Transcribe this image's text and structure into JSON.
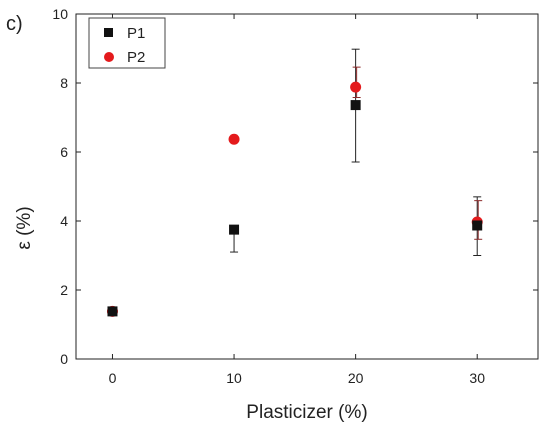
{
  "chart_data": {
    "type": "scatter",
    "panel_label": "c)",
    "xlabel": "Plasticizer (%)",
    "ylabel": "ε (%)",
    "xlim": [
      -3,
      35
    ],
    "ylim": [
      0,
      10
    ],
    "xticks": [
      0,
      10,
      20,
      30
    ],
    "yticks": [
      0,
      2,
      4,
      6,
      8,
      10
    ],
    "grid": false,
    "legend_position": "top-left",
    "series": [
      {
        "name": "P1",
        "marker": "square",
        "color": "#111111",
        "x": [
          0,
          10,
          20,
          30
        ],
        "y": [
          1.38,
          3.75,
          7.36,
          3.87
        ],
        "yerr_low": [
          0.0,
          0.65,
          1.65,
          0.87
        ],
        "yerr_high": [
          0.0,
          0.0,
          1.62,
          0.83
        ],
        "errorbar_color": "#222222"
      },
      {
        "name": "P2",
        "marker": "circle",
        "color": "#e41a1c",
        "x": [
          0,
          10,
          20,
          30
        ],
        "y": [
          1.38,
          6.37,
          7.88,
          3.97
        ],
        "yerr_low": [
          0.0,
          0.0,
          0.3,
          0.5
        ],
        "yerr_high": [
          0.0,
          0.0,
          0.58,
          0.62
        ],
        "errorbar_color": "#8b2a2a"
      }
    ]
  }
}
